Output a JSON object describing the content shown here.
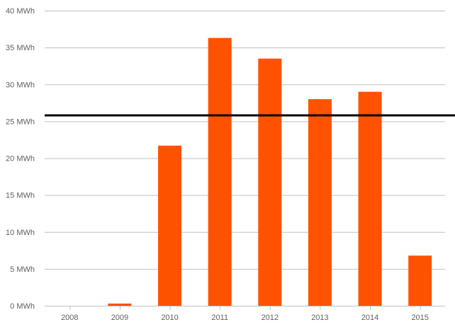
{
  "chart_data": {
    "type": "bar",
    "categories": [
      "2008",
      "2009",
      "2010",
      "2011",
      "2012",
      "2013",
      "2014",
      "2015"
    ],
    "values": [
      0,
      0.3,
      21.7,
      36.3,
      33.5,
      28.0,
      29.0,
      6.8
    ],
    "unit": "MWh",
    "ylim": [
      0,
      40
    ],
    "y_ticks": [
      0,
      5,
      10,
      15,
      20,
      25,
      30,
      35,
      40
    ],
    "y_tick_labels": [
      "0 MWh",
      "5 MWh",
      "10 MWh",
      "15 MWh",
      "20 MWh",
      "25 MWh",
      "30 MWh",
      "35 MWh",
      "40 MWh"
    ],
    "reference_line": {
      "value": 25.8,
      "color": "#000000"
    },
    "bar_color": "#ff5200",
    "grid": true,
    "legend": "none"
  }
}
